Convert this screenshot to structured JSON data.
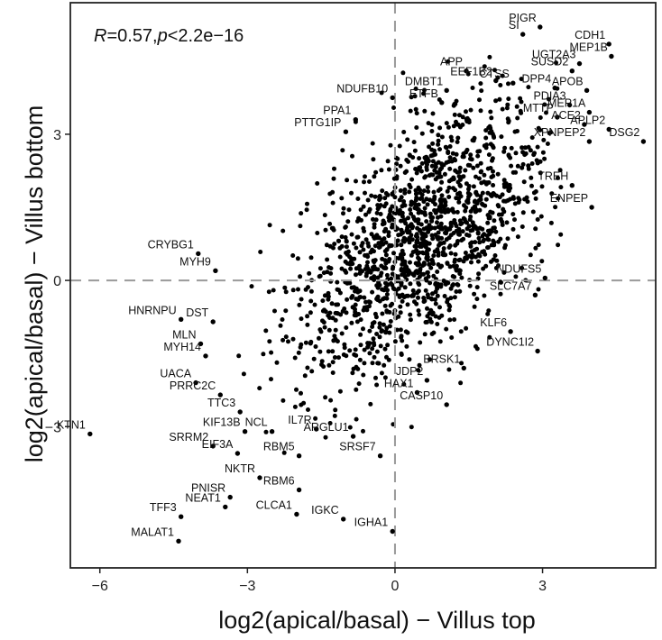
{
  "chart_data": {
    "type": "scatter",
    "xlabel": "log2(apical/basal) − Villus top",
    "ylabel": "log2(apical/basal) − Villus bottom",
    "annotation": {
      "r_symbol": "R",
      "r_value": "=0.57,",
      "p_symbol": "p",
      "p_value": "<2.2e−16"
    },
    "xlim": [
      -6.6,
      5.3
    ],
    "ylim": [
      -5.9,
      5.7
    ],
    "xticks": [
      {
        "value": -6,
        "label": "−6"
      },
      {
        "value": -3,
        "label": "−3"
      },
      {
        "value": 0,
        "label": "0"
      },
      {
        "value": 3,
        "label": "3"
      }
    ],
    "yticks": [
      {
        "value": -3,
        "label": "−3"
      },
      {
        "value": 0,
        "label": "0"
      },
      {
        "value": 3,
        "label": "3"
      }
    ],
    "reference_lines": {
      "x": 0,
      "y": 0
    },
    "grid": false,
    "labeled_points": [
      {
        "gene": "PIGR",
        "x": 2.95,
        "y": 5.2
      },
      {
        "gene": "CDH1",
        "x": 4.35,
        "y": 4.85
      },
      {
        "gene": "SI",
        "x": 2.6,
        "y": 5.05
      },
      {
        "gene": "UGT2A3",
        "x": 3.75,
        "y": 4.45
      },
      {
        "gene": "MEP1B",
        "x": 4.4,
        "y": 4.6
      },
      {
        "gene": "APP",
        "x": 1.45,
        "y": 4.3
      },
      {
        "gene": "EEF1B2",
        "x": 2.05,
        "y": 4.1
      },
      {
        "gene": "SUSD2",
        "x": 3.6,
        "y": 4.3
      },
      {
        "gene": "CTSS",
        "x": 2.4,
        "y": 4.05
      },
      {
        "gene": "DMBT1",
        "x": 1.05,
        "y": 3.9
      },
      {
        "gene": "DPP4",
        "x": 3.25,
        "y": 3.95
      },
      {
        "gene": "APOB",
        "x": 3.9,
        "y": 3.9
      },
      {
        "gene": "NDUFB10",
        "x": -0.05,
        "y": 3.75
      },
      {
        "gene": "ETFB",
        "x": 0.95,
        "y": 3.65
      },
      {
        "gene": "PDIA3",
        "x": 3.55,
        "y": 3.6
      },
      {
        "gene": "MEP1A",
        "x": 3.95,
        "y": 3.45
      },
      {
        "gene": "MTTP",
        "x": 3.3,
        "y": 3.35
      },
      {
        "gene": "PPA1",
        "x": -0.8,
        "y": 3.3
      },
      {
        "gene": "ACE2",
        "x": 3.85,
        "y": 3.2
      },
      {
        "gene": "APLP2",
        "x": 4.35,
        "y": 3.1
      },
      {
        "gene": "PTTG1IP",
        "x": -1.0,
        "y": 3.05
      },
      {
        "gene": "XPNPEP2",
        "x": 3.95,
        "y": 2.85
      },
      {
        "gene": "DSG2",
        "x": 5.05,
        "y": 2.85
      },
      {
        "gene": "TREH",
        "x": 3.6,
        "y": 1.95
      },
      {
        "gene": "ENPEP",
        "x": 4.0,
        "y": 1.5
      },
      {
        "gene": "CRYBG1",
        "x": -4.0,
        "y": 0.55
      },
      {
        "gene": "MYH9",
        "x": -3.65,
        "y": 0.2
      },
      {
        "gene": "NDUFS5",
        "x": 3.05,
        "y": 0.05
      },
      {
        "gene": "SLC7A7",
        "x": 2.85,
        "y": -0.3
      },
      {
        "gene": "HNRNPU",
        "x": -4.35,
        "y": -0.8
      },
      {
        "gene": "DST",
        "x": -3.7,
        "y": -0.85
      },
      {
        "gene": "KLF6",
        "x": 2.35,
        "y": -1.05
      },
      {
        "gene": "MLN",
        "x": -3.95,
        "y": -1.3
      },
      {
        "gene": "DYNC1I2",
        "x": 2.9,
        "y": -1.45
      },
      {
        "gene": "MYH14",
        "x": -3.85,
        "y": -1.55
      },
      {
        "gene": "BRSK1",
        "x": 1.4,
        "y": -1.8
      },
      {
        "gene": "UACA",
        "x": -4.05,
        "y": -2.1
      },
      {
        "gene": "JDP2",
        "x": 0.65,
        "y": -2.05
      },
      {
        "gene": "PRRC2C",
        "x": -3.55,
        "y": -2.35
      },
      {
        "gene": "HAX1",
        "x": 0.45,
        "y": -2.3
      },
      {
        "gene": "TTC3",
        "x": -3.15,
        "y": -2.7
      },
      {
        "gene": "CASP10",
        "x": 1.05,
        "y": -2.55
      },
      {
        "gene": "KTN1",
        "x": -6.2,
        "y": -3.15
      },
      {
        "gene": "KIF13B",
        "x": -3.05,
        "y": -3.1
      },
      {
        "gene": "NCL",
        "x": -2.5,
        "y": -3.1
      },
      {
        "gene": "IL7R",
        "x": -1.6,
        "y": -3.05
      },
      {
        "gene": "ARGLU1",
        "x": -0.85,
        "y": -3.2
      },
      {
        "gene": "SRRM2",
        "x": -3.7,
        "y": -3.4
      },
      {
        "gene": "EIF3A",
        "x": -3.2,
        "y": -3.55
      },
      {
        "gene": "RBM5",
        "x": -1.95,
        "y": -3.6
      },
      {
        "gene": "SRSF7",
        "x": -0.3,
        "y": -3.6
      },
      {
        "gene": "NKTR",
        "x": -2.75,
        "y": -4.05
      },
      {
        "gene": "PNISR",
        "x": -3.35,
        "y": -4.45
      },
      {
        "gene": "RBM6",
        "x": -1.95,
        "y": -4.3
      },
      {
        "gene": "NEAT1",
        "x": -3.45,
        "y": -4.65
      },
      {
        "gene": "IGKC",
        "x": -1.05,
        "y": -4.9
      },
      {
        "gene": "CLCA1",
        "x": -2.0,
        "y": -4.8
      },
      {
        "gene": "TFF3",
        "x": -4.35,
        "y": -4.85
      },
      {
        "gene": "IGHA1",
        "x": -0.05,
        "y": -5.15
      },
      {
        "gene": "MALAT1",
        "x": -4.4,
        "y": -5.35
      }
    ]
  }
}
